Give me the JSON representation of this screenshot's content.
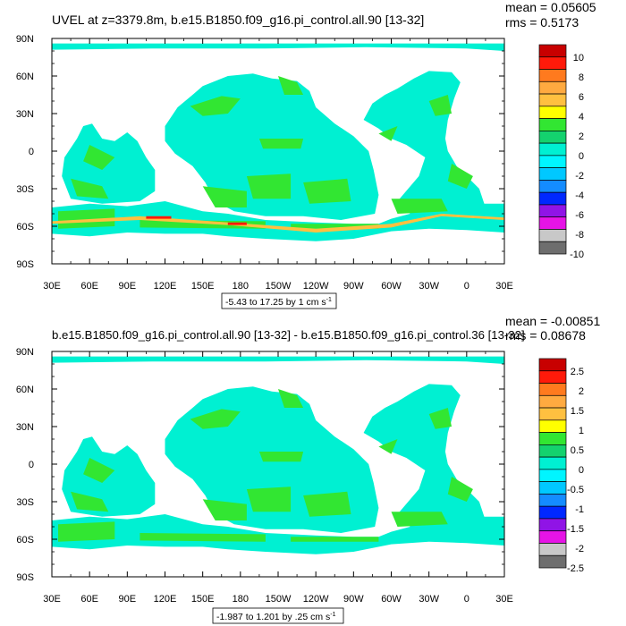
{
  "chart_data": [
    {
      "type": "heatmap",
      "title": "UVEL at z=3379.8m, b.e15.B1850.f09_g16.pi_control.all.90 [13-32]",
      "stats": {
        "mean_label": "mean = 0.05605",
        "rms_label": "rms = 0.5173"
      },
      "x_ticks": [
        "30E",
        "60E",
        "90E",
        "120E",
        "150E",
        "180",
        "150W",
        "120W",
        "90W",
        "60W",
        "30W",
        "0",
        "30E"
      ],
      "y_ticks": [
        "90N",
        "60N",
        "30N",
        "0",
        "30S",
        "60S",
        "90S"
      ],
      "x_range_lon": [
        30,
        390
      ],
      "y_range_lat": [
        -90,
        90
      ],
      "contour_info": {
        "prefix": "-5.43 to 17.25 by 1 cm s",
        "sup": "-1"
      },
      "colorbar_labels": [
        "10",
        "8",
        "6",
        "4",
        "2",
        "0",
        "-2",
        "-4",
        "-6",
        "-8",
        "-10"
      ],
      "colorbar_colors": [
        "#c80000",
        "#ff1a0a",
        "#ff7a1e",
        "#ffaa40",
        "#ffc040",
        "#ffff00",
        "#32e632",
        "#14d26e",
        "#00f0d2",
        "#00f5ff",
        "#00c8ff",
        "#148cff",
        "#0028ff",
        "#9014e6",
        "#e614e6",
        "#c8c8c8",
        "#6e6e6e"
      ]
    },
    {
      "type": "heatmap",
      "title": "b.e15.B1850.f09_g16.pi_control.all.90 [13-32] - b.e15.B1850.f09_g16.pi_control.36 [13-32]",
      "stats": {
        "mean_label": "mean = -0.00851",
        "rms_label": "rms = 0.08678"
      },
      "x_ticks": [
        "30E",
        "60E",
        "90E",
        "120E",
        "150E",
        "180",
        "150W",
        "120W",
        "90W",
        "60W",
        "30W",
        "0",
        "30E"
      ],
      "y_ticks": [
        "90N",
        "60N",
        "30N",
        "0",
        "30S",
        "60S",
        "90S"
      ],
      "x_range_lon": [
        30,
        390
      ],
      "y_range_lat": [
        -90,
        90
      ],
      "contour_info": {
        "prefix": "-1.987 to 1.201 by .25 cm s",
        "sup": "-1"
      },
      "colorbar_labels": [
        "2.5",
        "2",
        "1.5",
        "1",
        "0.5",
        "0",
        "-0.5",
        "-1",
        "-1.5",
        "-2",
        "-2.5"
      ],
      "colorbar_colors": [
        "#c80000",
        "#ff1a0a",
        "#ff7a1e",
        "#ffaa40",
        "#ffc040",
        "#ffff00",
        "#32e632",
        "#14d26e",
        "#00f0d2",
        "#00f5ff",
        "#00c8ff",
        "#148cff",
        "#0028ff",
        "#9014e6",
        "#e614e6",
        "#c8c8c8",
        "#6e6e6e"
      ]
    }
  ],
  "ocean_colors": {
    "dominant": "#00f0d2",
    "secondary": "#32e632",
    "minor": "#14d26e",
    "jet_positive": "#ffc040",
    "jet_strong": "#ff1a0a"
  }
}
